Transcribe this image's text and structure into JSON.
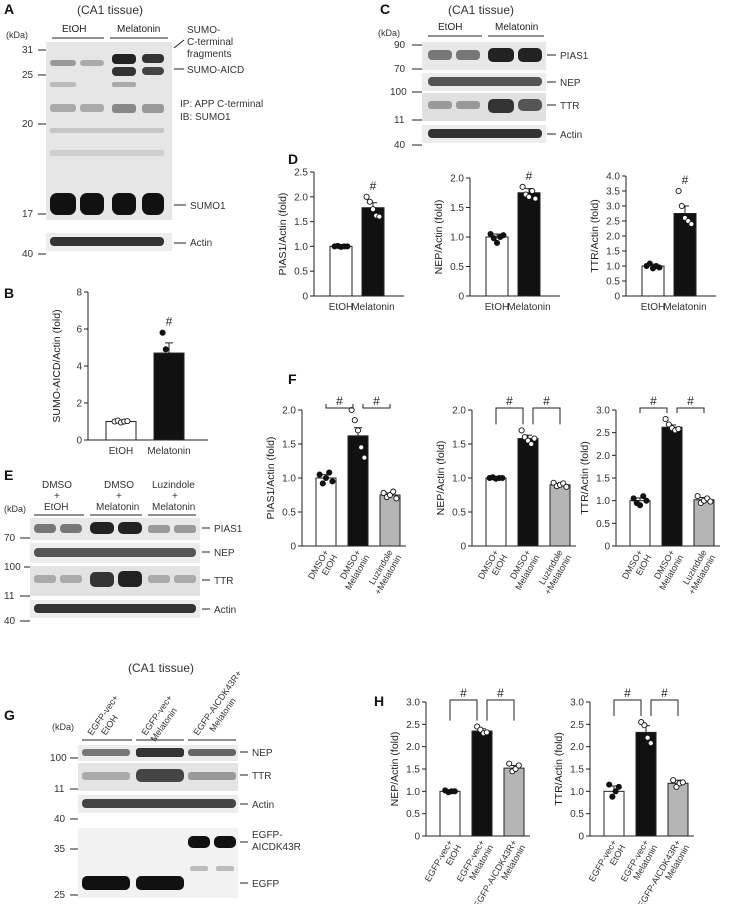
{
  "panels": {
    "A": {
      "letter": "A",
      "title": "(CA1 tissue)",
      "unit": "(kDa)",
      "groups": [
        "EtOH",
        "Melatonin"
      ],
      "markers": [
        "31",
        "25",
        "20",
        "17",
        "40"
      ],
      "labels": [
        "SUMO-",
        "C-terminal",
        "fragments",
        "SUMO-AICD",
        "SUMO1",
        "Actin"
      ],
      "ip_note": "IP: APP C-terminal",
      "ib_note": "IB: SUMO1"
    },
    "B": {
      "letter": "B"
    },
    "C": {
      "letter": "C",
      "title": "(CA1 tissue)",
      "unit": "(kDa)",
      "groups": [
        "EtOH",
        "Melatonin"
      ],
      "markers": [
        "90",
        "70",
        "100",
        "11",
        "40"
      ],
      "labels": [
        "PIAS1",
        "NEP",
        "TTR",
        "Actin"
      ]
    },
    "D": {
      "letter": "D"
    },
    "E": {
      "letter": "E",
      "unit": "(kDa)",
      "groups": [
        [
          "DMSO",
          "+",
          "EtOH"
        ],
        [
          "DMSO",
          "+",
          "Melatonin"
        ],
        [
          "Luzindole",
          "+",
          "Melatonin"
        ]
      ],
      "markers": [
        "70",
        "100",
        "11",
        "40"
      ],
      "labels": [
        "PIAS1",
        "NEP",
        "TTR",
        "Actin"
      ]
    },
    "F": {
      "letter": "F"
    },
    "G": {
      "letter": "G",
      "title": "(CA1 tissue)",
      "unit": "(kDa)",
      "groups": [
        [
          "EGFP-vec+",
          "EtOH"
        ],
        [
          "EGFP-vec+",
          "Melatonin"
        ],
        [
          "EGFP-AICDK43R+",
          "Melatonin"
        ]
      ],
      "markers": [
        "100",
        "11",
        "40",
        "35",
        "25"
      ],
      "labels": [
        "NEP",
        "TTR",
        "Actin",
        "EGFP-",
        "AICDK43R",
        "EGFP"
      ]
    },
    "H": {
      "letter": "H"
    }
  },
  "chart_data": [
    {
      "id": "B",
      "type": "bar",
      "ylabel": "SUMO-AICD/Actin (fold)",
      "categories": [
        [
          "EtOH"
        ],
        [
          "Melatonin"
        ]
      ],
      "ylim": [
        0,
        8
      ],
      "yticks": [
        "0",
        "2",
        "4",
        "6",
        "8"
      ],
      "values": [
        1.0,
        4.7
      ],
      "errors": [
        0.05,
        0.55
      ],
      "points": [
        [
          1.0,
          1.05,
          0.95,
          1.0,
          1.02
        ],
        [
          5.8,
          4.9,
          4.5,
          3.4,
          3.9
        ]
      ],
      "colors": [
        "#ffffff",
        "#111111"
      ],
      "hollow_points": [
        true,
        false
      ],
      "sig": [
        {
          "at": 1,
          "text": "#"
        }
      ]
    },
    {
      "id": "D1",
      "type": "bar",
      "ylabel": "PIAS1/Actin (fold)",
      "categories": [
        [
          "EtOH"
        ],
        [
          "Melatonin"
        ]
      ],
      "ylim": [
        0,
        2.5
      ],
      "yticks": [
        "0",
        "0.5",
        "1.0",
        "1.5",
        "2.0",
        "2.5"
      ],
      "values": [
        1.0,
        1.78
      ],
      "errors": [
        0.02,
        0.1
      ],
      "points": [
        [
          1.0,
          1.01,
          0.99,
          1.0,
          1.0
        ],
        [
          2.0,
          1.9,
          1.75,
          1.62,
          1.6
        ]
      ],
      "colors": [
        "#ffffff",
        "#111111"
      ],
      "hollow_points": [
        false,
        true
      ],
      "sig": [
        {
          "at": 1,
          "text": "#"
        }
      ]
    },
    {
      "id": "D2",
      "type": "bar",
      "ylabel": "NEP/Actin (fold)",
      "categories": [
        [
          "EtOH"
        ],
        [
          "Melatonin"
        ]
      ],
      "ylim": [
        0,
        2.0
      ],
      "yticks": [
        "0",
        "0.5",
        "1.0",
        "1.5",
        "2.0"
      ],
      "values": [
        1.0,
        1.75
      ],
      "errors": [
        0.05,
        0.07
      ],
      "points": [
        [
          1.05,
          0.98,
          0.9,
          1.0,
          1.03
        ],
        [
          1.85,
          1.72,
          1.68,
          1.78,
          1.65
        ]
      ],
      "colors": [
        "#ffffff",
        "#111111"
      ],
      "hollow_points": [
        false,
        true
      ],
      "sig": [
        {
          "at": 1,
          "text": "#"
        }
      ]
    },
    {
      "id": "D3",
      "type": "bar",
      "ylabel": "TTR/Actin (fold)",
      "categories": [
        [
          "EtOH"
        ],
        [
          "Melatonin"
        ]
      ],
      "ylim": [
        0,
        4.0
      ],
      "yticks": [
        "0",
        "0.5",
        "1.0",
        "1.5",
        "2.0",
        "2.5",
        "3.0",
        "3.5",
        "4.0"
      ],
      "values": [
        1.0,
        2.75
      ],
      "errors": [
        0.06,
        0.25
      ],
      "points": [
        [
          1.0,
          1.08,
          0.92,
          1.0,
          0.95
        ],
        [
          3.5,
          3.0,
          2.6,
          2.5,
          2.4
        ]
      ],
      "colors": [
        "#ffffff",
        "#111111"
      ],
      "hollow_points": [
        false,
        true
      ],
      "sig": [
        {
          "at": 1,
          "text": "#"
        }
      ]
    },
    {
      "id": "F1",
      "type": "bar",
      "ylabel": "PIAS1/Actin (fold)",
      "categories": [
        [
          "DMSO+",
          "EtOH"
        ],
        [
          "DMSO+",
          "Melatonin"
        ],
        [
          "Luzindole",
          "+Melatonin"
        ]
      ],
      "ylim": [
        0,
        2.0
      ],
      "yticks": [
        "0",
        "0.5",
        "1.0",
        "1.5",
        "2.0"
      ],
      "values": [
        1.0,
        1.62,
        0.75
      ],
      "errors": [
        0.05,
        0.12,
        0.03
      ],
      "points": [
        [
          1.05,
          0.92,
          1.0,
          1.08,
          0.95
        ],
        [
          2.0,
          1.85,
          1.7,
          1.45,
          1.3
        ],
        [
          0.78,
          0.72,
          0.75,
          0.8,
          0.7
        ]
      ],
      "colors": [
        "#ffffff",
        "#111111",
        "#b5b5b5"
      ],
      "hollow_points": [
        false,
        true,
        true
      ],
      "sig": [
        {
          "from": 0,
          "to": 1,
          "text": "#"
        },
        {
          "from": 1,
          "to": 2,
          "text": "#"
        }
      ]
    },
    {
      "id": "F2",
      "type": "bar",
      "ylabel": "NEP/Actin (fold)",
      "categories": [
        [
          "DMSO+",
          "EtOH"
        ],
        [
          "DMSO+",
          "Melatonin"
        ],
        [
          "Luzindole",
          "+Melatonin"
        ]
      ],
      "ylim": [
        0,
        2.0
      ],
      "yticks": [
        "0",
        "0.5",
        "1.0",
        "1.5",
        "2.0"
      ],
      "values": [
        1.0,
        1.58,
        0.9
      ],
      "errors": [
        0.01,
        0.05,
        0.02
      ],
      "points": [
        [
          1.0,
          1.01,
          0.99,
          1.0,
          1.0
        ],
        [
          1.7,
          1.6,
          1.55,
          1.5,
          1.58
        ],
        [
          0.93,
          0.88,
          0.9,
          0.92,
          0.87
        ]
      ],
      "colors": [
        "#ffffff",
        "#111111",
        "#b5b5b5"
      ],
      "hollow_points": [
        false,
        true,
        true
      ],
      "sig": [
        {
          "from": 0,
          "to": 1,
          "text": "#"
        },
        {
          "from": 1,
          "to": 2,
          "text": "#"
        }
      ]
    },
    {
      "id": "F3",
      "type": "bar",
      "ylabel": "TTR/Actin (fold)",
      "categories": [
        [
          "DMSO+",
          "EtOH"
        ],
        [
          "DMSO+",
          "Melatonin"
        ],
        [
          "Luzindole",
          "+Melatonin"
        ]
      ],
      "ylim": [
        0,
        3.0
      ],
      "yticks": [
        "0",
        "0.5",
        "1.0",
        "1.5",
        "2.0",
        "2.5",
        "3.0"
      ],
      "values": [
        1.0,
        2.62,
        1.02
      ],
      "errors": [
        0.06,
        0.05,
        0.05
      ],
      "points": [
        [
          1.05,
          0.95,
          0.9,
          1.1,
          1.0
        ],
        [
          2.8,
          2.68,
          2.6,
          2.55,
          2.58
        ],
        [
          1.1,
          0.95,
          1.0,
          1.05,
          0.98
        ]
      ],
      "colors": [
        "#ffffff",
        "#111111",
        "#b5b5b5"
      ],
      "hollow_points": [
        false,
        true,
        true
      ],
      "sig": [
        {
          "from": 0,
          "to": 1,
          "text": "#"
        },
        {
          "from": 1,
          "to": 2,
          "text": "#"
        }
      ]
    },
    {
      "id": "H1",
      "type": "bar",
      "ylabel": "NEP/Actin (fold)",
      "categories": [
        [
          "EGFP-vec+",
          "EtOH"
        ],
        [
          "EGFP-vec+",
          "Melatonin"
        ],
        [
          "EGFP-AICDK43R+",
          "Melatonin"
        ]
      ],
      "ylim": [
        0,
        3.0
      ],
      "yticks": [
        "0",
        "0.5",
        "1.0",
        "1.5",
        "2.0",
        "2.5",
        "3.0"
      ],
      "values": [
        1.0,
        2.35,
        1.52
      ],
      "errors": [
        0.02,
        0.05,
        0.06
      ],
      "points": [
        [
          1.02,
          0.98,
          1.0,
          1.0
        ],
        [
          2.45,
          2.38,
          2.3,
          2.32
        ],
        [
          1.62,
          1.45,
          1.5,
          1.58
        ]
      ],
      "colors": [
        "#ffffff",
        "#111111",
        "#b5b5b5"
      ],
      "hollow_points": [
        false,
        true,
        true
      ],
      "sig": [
        {
          "from": 0,
          "to": 1,
          "text": "#"
        },
        {
          "from": 1,
          "to": 2,
          "text": "#"
        }
      ]
    },
    {
      "id": "H2",
      "type": "bar",
      "ylabel": "TTR/Actin (fold)",
      "categories": [
        [
          "EGFP-vec+",
          "EtOH"
        ],
        [
          "EGFP-vec+",
          "Melatonin"
        ],
        [
          "EGFP-AICDK43R+",
          "Melatonin"
        ]
      ],
      "ylim": [
        0,
        3.0
      ],
      "yticks": [
        "0",
        "0.5",
        "1.0",
        "1.5",
        "2.0",
        "2.5",
        "3.0"
      ],
      "values": [
        1.0,
        2.32,
        1.18
      ],
      "errors": [
        0.12,
        0.15,
        0.07
      ],
      "points": [
        [
          1.15,
          0.88,
          1.0,
          1.1
        ],
        [
          2.55,
          2.48,
          2.2,
          2.08
        ],
        [
          1.25,
          1.1,
          1.18,
          1.2
        ]
      ],
      "colors": [
        "#ffffff",
        "#111111",
        "#b5b5b5"
      ],
      "hollow_points": [
        false,
        true,
        true
      ],
      "sig": [
        {
          "from": 0,
          "to": 1,
          "text": "#"
        },
        {
          "from": 1,
          "to": 2,
          "text": "#"
        }
      ]
    }
  ]
}
